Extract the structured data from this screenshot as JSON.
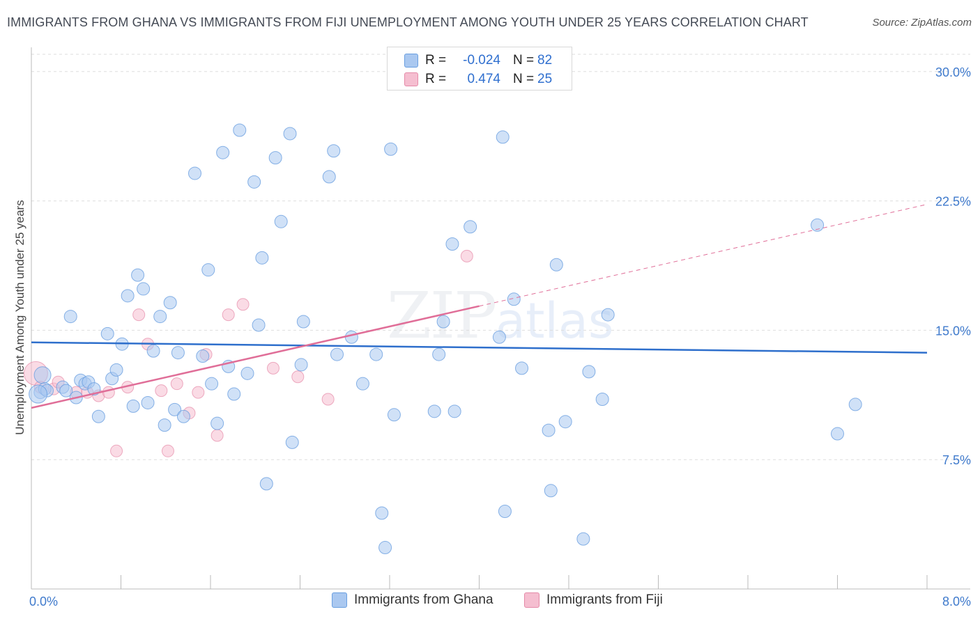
{
  "header": {
    "title": "IMMIGRANTS FROM GHANA VS IMMIGRANTS FROM FIJI UNEMPLOYMENT AMONG YOUTH UNDER 25 YEARS CORRELATION CHART",
    "source": "Source: ZipAtlas.com"
  },
  "legend": {
    "rows": [
      {
        "r_label": "R =",
        "r_value": "-0.024",
        "n_label": "N =",
        "n_value": "82"
      },
      {
        "r_label": "R =",
        "r_value": "0.474",
        "n_label": "N =",
        "n_value": "25"
      }
    ]
  },
  "bottom_legend": {
    "ghana": "Immigrants from Ghana",
    "fiji": "Immigrants from Fiji"
  },
  "watermark": {
    "zip": "ZIP",
    "atlas": "atlas"
  },
  "colors": {
    "ghana_fill": "#aac8f0",
    "ghana_stroke": "#6a9fe0",
    "ghana_line": "#2e6fcc",
    "fiji_fill": "#f5bed0",
    "fiji_stroke": "#e58aa8",
    "fiji_line": "#e06e98",
    "axis_text": "#3f7acc",
    "grid": "#dddddd"
  },
  "chart_data": {
    "type": "scatter",
    "ylabel": "Unemployment Among Youth under 25 years",
    "xlabel": "",
    "xlim": [
      0,
      8
    ],
    "ylim": [
      0,
      31
    ],
    "x_tick_labels": [
      "0.0%",
      "8.0%"
    ],
    "y_ticks": [
      7.5,
      15.0,
      22.5,
      30.0
    ],
    "y_tick_labels": [
      "7.5%",
      "15.0%",
      "22.5%",
      "30.0%"
    ],
    "grid": true,
    "legend_position": "top-center",
    "series": [
      {
        "name": "Immigrants from Ghana",
        "points": [
          [
            0.08,
            11.4
          ],
          [
            0.1,
            12.4
          ],
          [
            0.12,
            11.6
          ],
          [
            0.14,
            11.5
          ],
          [
            0.28,
            11.7
          ],
          [
            0.31,
            11.5
          ],
          [
            0.35,
            15.8
          ],
          [
            0.4,
            11.1
          ],
          [
            0.44,
            12.1
          ],
          [
            0.48,
            11.9
          ],
          [
            0.51,
            12.0
          ],
          [
            0.56,
            11.6
          ],
          [
            0.6,
            10.0
          ],
          [
            0.68,
            14.8
          ],
          [
            0.72,
            12.2
          ],
          [
            0.76,
            12.7
          ],
          [
            0.81,
            14.2
          ],
          [
            0.86,
            17.0
          ],
          [
            0.91,
            10.6
          ],
          [
            0.95,
            18.2
          ],
          [
            1.0,
            17.4
          ],
          [
            1.04,
            10.8
          ],
          [
            1.09,
            13.8
          ],
          [
            1.15,
            15.8
          ],
          [
            1.19,
            9.5
          ],
          [
            1.24,
            16.6
          ],
          [
            1.28,
            10.4
          ],
          [
            1.31,
            13.7
          ],
          [
            1.36,
            10.0
          ],
          [
            1.46,
            24.1
          ],
          [
            1.53,
            13.5
          ],
          [
            1.58,
            18.5
          ],
          [
            1.61,
            11.9
          ],
          [
            1.66,
            9.6
          ],
          [
            1.71,
            25.3
          ],
          [
            1.76,
            12.9
          ],
          [
            1.81,
            11.3
          ],
          [
            1.86,
            26.6
          ],
          [
            1.93,
            12.5
          ],
          [
            1.99,
            23.6
          ],
          [
            2.03,
            15.3
          ],
          [
            2.06,
            19.2
          ],
          [
            2.1,
            6.1
          ],
          [
            2.18,
            25.0
          ],
          [
            2.23,
            21.3
          ],
          [
            2.31,
            26.4
          ],
          [
            2.33,
            8.5
          ],
          [
            2.41,
            13.0
          ],
          [
            2.43,
            15.5
          ],
          [
            2.66,
            23.9
          ],
          [
            2.7,
            25.4
          ],
          [
            2.73,
            13.6
          ],
          [
            2.86,
            14.6
          ],
          [
            2.96,
            11.9
          ],
          [
            3.08,
            13.6
          ],
          [
            3.13,
            4.4
          ],
          [
            3.16,
            2.4
          ],
          [
            3.21,
            25.5
          ],
          [
            3.24,
            10.1
          ],
          [
            3.6,
            10.3
          ],
          [
            3.64,
            13.6
          ],
          [
            3.68,
            15.5
          ],
          [
            3.76,
            20.0
          ],
          [
            3.78,
            10.3
          ],
          [
            3.92,
            21.0
          ],
          [
            4.18,
            14.6
          ],
          [
            4.21,
            26.2
          ],
          [
            4.23,
            4.5
          ],
          [
            4.31,
            16.8
          ],
          [
            4.38,
            12.8
          ],
          [
            4.62,
            9.2
          ],
          [
            4.64,
            5.7
          ],
          [
            4.69,
            18.8
          ],
          [
            4.77,
            9.7
          ],
          [
            4.93,
            2.9
          ],
          [
            4.98,
            12.6
          ],
          [
            5.1,
            11.0
          ],
          [
            5.15,
            15.9
          ],
          [
            7.02,
            21.1
          ],
          [
            7.2,
            9.0
          ],
          [
            7.36,
            10.7
          ],
          [
            0.06,
            11.3
          ]
        ]
      },
      {
        "name": "Immigrants from Fiji",
        "points": [
          [
            0.04,
            12.5
          ],
          [
            0.08,
            11.7
          ],
          [
            0.2,
            11.6
          ],
          [
            0.24,
            12.0
          ],
          [
            0.4,
            11.4
          ],
          [
            0.5,
            11.4
          ],
          [
            0.6,
            11.2
          ],
          [
            0.69,
            11.4
          ],
          [
            0.76,
            8.0
          ],
          [
            0.86,
            11.7
          ],
          [
            0.96,
            15.9
          ],
          [
            1.04,
            14.2
          ],
          [
            1.16,
            11.5
          ],
          [
            1.22,
            8.0
          ],
          [
            1.3,
            11.9
          ],
          [
            1.41,
            10.2
          ],
          [
            1.49,
            11.4
          ],
          [
            1.56,
            13.6
          ],
          [
            1.66,
            8.9
          ],
          [
            1.76,
            15.9
          ],
          [
            1.89,
            16.5
          ],
          [
            2.16,
            12.8
          ],
          [
            2.38,
            12.3
          ],
          [
            2.65,
            11.0
          ],
          [
            3.89,
            19.3
          ]
        ]
      }
    ],
    "trend_lines": [
      {
        "series": "Immigrants from Ghana",
        "x": [
          0,
          8
        ],
        "y": [
          14.3,
          13.7
        ],
        "style": "solid"
      },
      {
        "series": "Immigrants from Fiji",
        "x": [
          0,
          4.0
        ],
        "y": [
          10.5,
          16.4
        ],
        "style": "solid"
      },
      {
        "series": "Immigrants from Fiji",
        "x": [
          4.0,
          8
        ],
        "y": [
          16.4,
          22.3
        ],
        "style": "dashed"
      }
    ]
  }
}
